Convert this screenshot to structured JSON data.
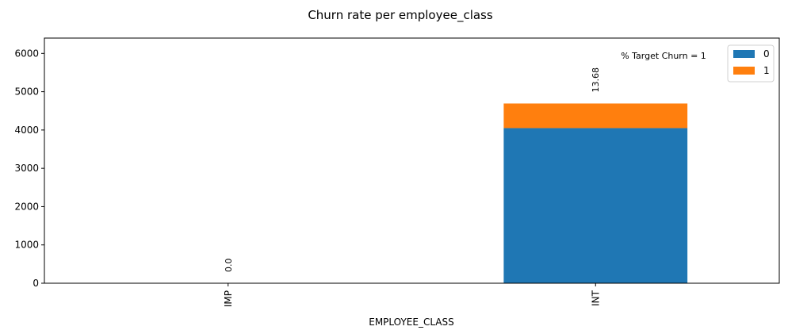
{
  "chart_data": {
    "type": "bar",
    "stacked": true,
    "title": "Churn rate per employee_class",
    "xlabel": "EMPLOYEE_CLASS",
    "ylabel": "",
    "categories": [
      "IMP",
      "INT"
    ],
    "series": [
      {
        "name": "0",
        "color": "#1f77b4",
        "values": [
          0,
          4050
        ]
      },
      {
        "name": "1",
        "color": "#ff7f0e",
        "values": [
          0,
          642
        ]
      }
    ],
    "bar_labels": [
      "0.0",
      "13.68"
    ],
    "ylim": [
      0,
      6400
    ],
    "yticks": [
      0,
      1000,
      2000,
      3000,
      4000,
      5000,
      6000
    ],
    "annotation": "% Target Churn = 1",
    "legend_position": "top-right",
    "grid": false
  }
}
